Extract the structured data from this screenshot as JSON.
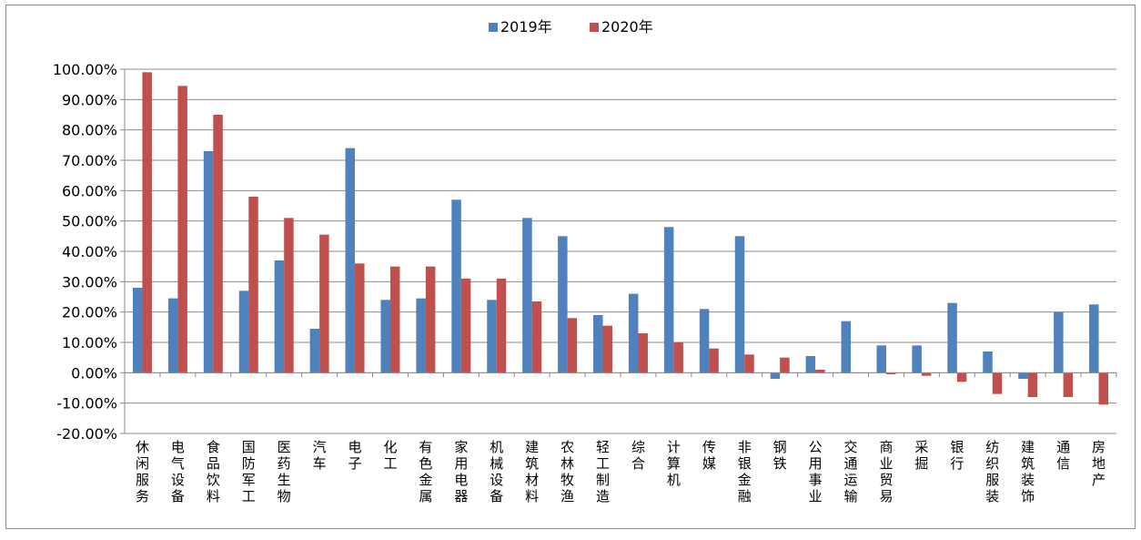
{
  "chart_data": {
    "type": "bar",
    "title": "",
    "xlabel": "",
    "ylabel": "",
    "ylim": [
      -20,
      100
    ],
    "y_ticks": [
      100,
      90,
      80,
      70,
      60,
      50,
      40,
      30,
      20,
      10,
      0,
      -10,
      -20
    ],
    "y_tick_labels": [
      "100.00%",
      "90.00%",
      "80.00%",
      "70.00%",
      "60.00%",
      "50.00%",
      "40.00%",
      "30.00%",
      "20.00%",
      "10.00%",
      "0.00%",
      "-10.00%",
      "-20.00%"
    ],
    "grid": "horizontal",
    "legend_position": "top-center",
    "categories": [
      "休闲服务",
      "电气设备",
      "食品饮料",
      "国防军工",
      "医药生物",
      "汽车",
      "电子",
      "化工",
      "有色金属",
      "家用电器",
      "机械设备",
      "建筑材料",
      "农林牧渔",
      "轻工制造",
      "综合",
      "计算机",
      "传媒",
      "非银金融",
      "钢铁",
      "公用事业",
      "交通运输",
      "商业贸易",
      "采掘",
      "银行",
      "纺织服装",
      "建筑装饰",
      "通信",
      "房地产"
    ],
    "series": [
      {
        "name": "2019年",
        "color": "#4f81bd",
        "values": [
          28,
          24.5,
          73,
          27,
          37,
          14.5,
          74,
          24,
          24.5,
          57,
          24,
          51,
          45,
          19,
          26,
          48,
          21,
          45,
          -2,
          5.5,
          17,
          9,
          9,
          23,
          7,
          -2,
          20,
          22.5
        ]
      },
      {
        "name": "2020年",
        "color": "#c0504d",
        "values": [
          99,
          94.5,
          85,
          58,
          51,
          45.5,
          36,
          35,
          35,
          31,
          31,
          23.5,
          18,
          15.5,
          13,
          10,
          8,
          6,
          5,
          1,
          0,
          -0.5,
          -1,
          -3,
          -7,
          -8,
          -8,
          -10.5
        ]
      }
    ]
  }
}
